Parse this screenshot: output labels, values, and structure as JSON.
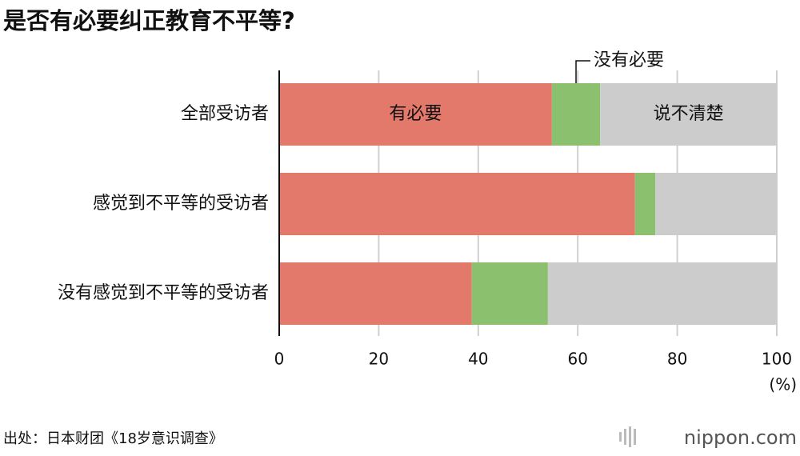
{
  "chart_data": {
    "type": "stacked-barh",
    "title": "是否有必要纠正教育不平等?",
    "categories": [
      "全部受访者",
      "感觉到不平等的受访者",
      "没有感觉到不平等的受访者"
    ],
    "series": [
      {
        "name": "有必要",
        "color": "#e2796b",
        "values": [
          54.8,
          71.5,
          38.7
        ]
      },
      {
        "name": "没有必要",
        "color": "#8bc16e",
        "values": [
          9.7,
          4.1,
          15.3
        ]
      },
      {
        "name": "说不清楚",
        "color": "#cccccc",
        "values": [
          35.5,
          24.4,
          46.0
        ]
      }
    ],
    "xlim": [
      0,
      100
    ],
    "xticks": [
      0,
      20,
      40,
      60,
      80,
      100
    ],
    "x_unit": "(%)",
    "grid": true,
    "source": "出处：日本财团《18岁意识调查》",
    "logo": "nippon.com"
  }
}
